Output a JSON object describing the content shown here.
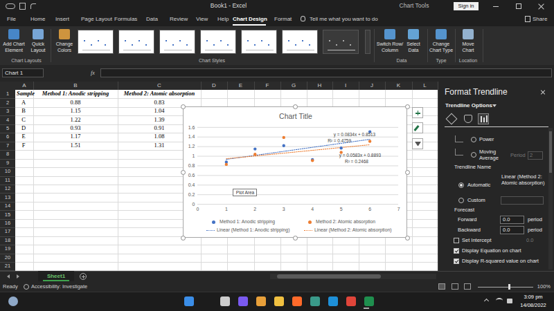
{
  "window": {
    "title": "Book1 - Excel",
    "context": "Chart Tools",
    "sign_in": "Sign in"
  },
  "tabs": [
    "File",
    "Home",
    "Insert",
    "Page Layout",
    "Formulas",
    "Data",
    "Review",
    "View",
    "Help",
    "Chart Design",
    "Format"
  ],
  "active_tab": "Chart Design",
  "tell_me": "Tell me what you want to do",
  "share": "Share",
  "ribbon": {
    "groups": [
      {
        "name": "Chart Layouts",
        "buttons": [
          [
            "Add Chart",
            "Element"
          ],
          [
            "Quick",
            "Layout"
          ]
        ]
      },
      {
        "name": "Chart Styles",
        "buttons": [
          [
            "Change",
            "Colors"
          ]
        ]
      },
      {
        "name": "Data",
        "buttons": [
          [
            "Switch Row/",
            "Column"
          ],
          [
            "Select",
            "Data"
          ]
        ]
      },
      {
        "name": "Type",
        "buttons": [
          [
            "Change",
            "Chart Type"
          ]
        ]
      },
      {
        "name": "Location",
        "buttons": [
          [
            "Move",
            "Chart"
          ]
        ]
      }
    ]
  },
  "formula_bar": {
    "name_box": "Chart 1",
    "fx": "fx"
  },
  "sheet": {
    "columns": [
      "A",
      "B",
      "C",
      "D",
      "E",
      "F",
      "G",
      "H",
      "I",
      "J",
      "K",
      "L"
    ],
    "rows": [
      1,
      2,
      3,
      4,
      5,
      6,
      7,
      8,
      9,
      10,
      11,
      12,
      13,
      14,
      15,
      16,
      17,
      18,
      19,
      20,
      21
    ],
    "header": [
      "Sample",
      "Method 1: Anodic stripping",
      "Method 2: Atomic absorption"
    ],
    "cells": [
      [
        "A",
        0.88,
        0.83
      ],
      [
        "B",
        1.15,
        1.04
      ],
      [
        "C",
        1.22,
        1.39
      ],
      [
        "D",
        0.93,
        0.91
      ],
      [
        "E",
        1.17,
        1.08
      ],
      [
        "F",
        1.51,
        1.31
      ]
    ],
    "tab": "Sheet1"
  },
  "chart_data": {
    "type": "scatter",
    "title": "Chart Title",
    "x": [
      1,
      2,
      3,
      4,
      5,
      6
    ],
    "series": [
      {
        "name": "Method 1: Anodic stripping",
        "color": "#4472c4",
        "marker": "circle",
        "values": [
          0.88,
          1.15,
          1.22,
          0.93,
          1.17,
          1.51
        ]
      },
      {
        "name": "Method 2: Atomic absorption",
        "color": "#ed7d31",
        "marker": "circle",
        "values": [
          0.83,
          1.04,
          1.39,
          0.91,
          1.08,
          1.31
        ]
      }
    ],
    "trendlines": [
      {
        "name": "Linear (Method 1: Anodic stripping)",
        "color": "#4472c4",
        "line_style": "dotted",
        "slope": 0.0834,
        "intercept": 0.8513,
        "equation_label": "y = 0.0834x + 0.8513",
        "r_squared_label": "R² = 0.4759"
      },
      {
        "name": "Linear (Method 2: Atomic absorption)",
        "color": "#ed7d31",
        "line_style": "dotted",
        "slope": 0.0583,
        "intercept": 0.8893,
        "equation_label": "y = 0.0583x + 0.8893",
        "r_squared_label": "R² = 0.2468"
      }
    ],
    "xlim": [
      0,
      7
    ],
    "xticks": [
      0,
      1,
      2,
      3,
      4,
      5,
      6,
      7
    ],
    "ylim": [
      0,
      1.6
    ],
    "yticks": [
      0,
      0.2,
      0.4,
      0.6,
      0.8,
      1,
      1.2,
      1.4,
      1.6
    ],
    "grid": true,
    "legend": "bottom",
    "tooltip": "Plot Area"
  },
  "pane": {
    "title": "Format Trendline",
    "section": "Trendline Options",
    "power": "Power",
    "moving_average": [
      "Moving",
      "Average"
    ],
    "period_label": "Period",
    "period_value": "2",
    "trendline_name": "Trendline Name",
    "automatic": "Automatic",
    "automatic_value": "Linear (Method 2: Atomic absorption)",
    "custom": "Custom",
    "forecast": "Forecast",
    "forward": "Forward",
    "forward_value": "0.0",
    "backward": "Backward",
    "backward_value": "0.0",
    "period_unit": "period",
    "set_intercept": "Set Intercept",
    "intercept_value": "0.0",
    "display_equation": "Display Equation on chart",
    "display_r_squared": "Display R-squared value on chart"
  },
  "status_bar": {
    "ready": "Ready",
    "accessibility": "Accessibility: Investigate",
    "zoom": "100%"
  },
  "taskbar": {
    "time": "3:09 pm",
    "date": "14/08/2022"
  }
}
